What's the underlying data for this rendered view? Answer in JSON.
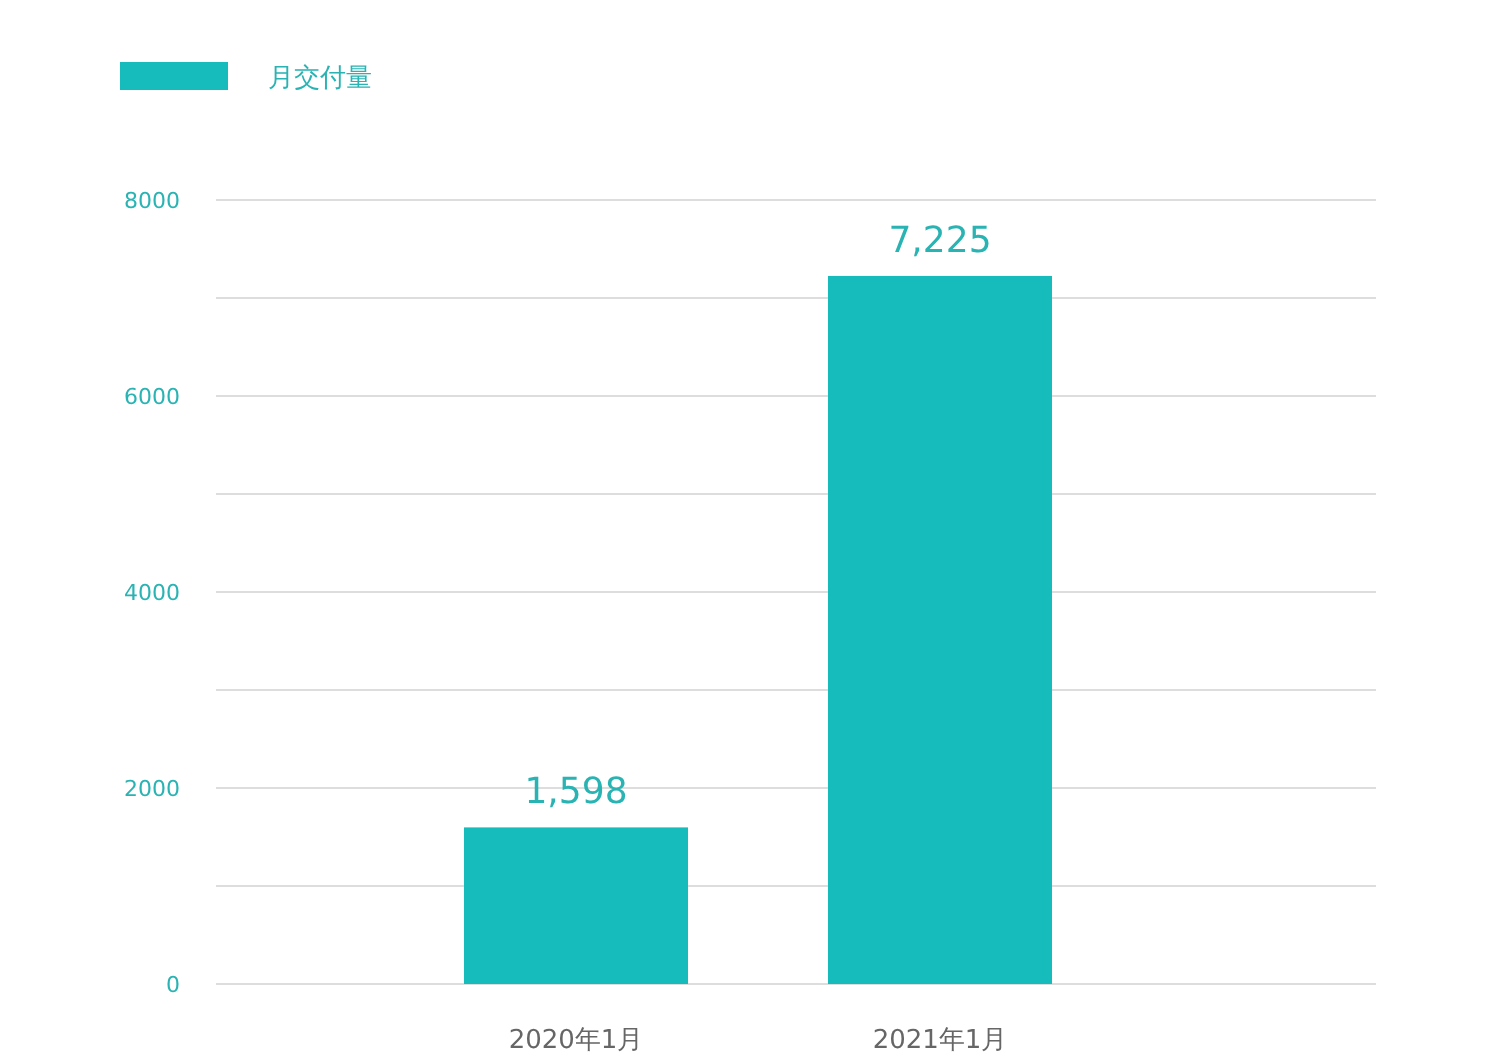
{
  "chart_data": {
    "type": "bar",
    "categories": [
      "2020年1月",
      "2021年1月"
    ],
    "series": [
      {
        "name": "月交付量",
        "color": "#16bcbc",
        "values": [
          1598,
          7225
        ],
        "value_labels": [
          "1,598",
          "7,225"
        ]
      }
    ],
    "ylim": [
      0,
      8000
    ],
    "yticks": [
      0,
      {
        "value": 1000,
        "label": null
      },
      2000,
      {
        "value": 3000,
        "label": null
      },
      4000,
      {
        "value": 5000,
        "label": null
      },
      6000,
      {
        "value": 7000,
        "label": null
      },
      8000
    ],
    "grid": "y",
    "legend": "top left"
  }
}
